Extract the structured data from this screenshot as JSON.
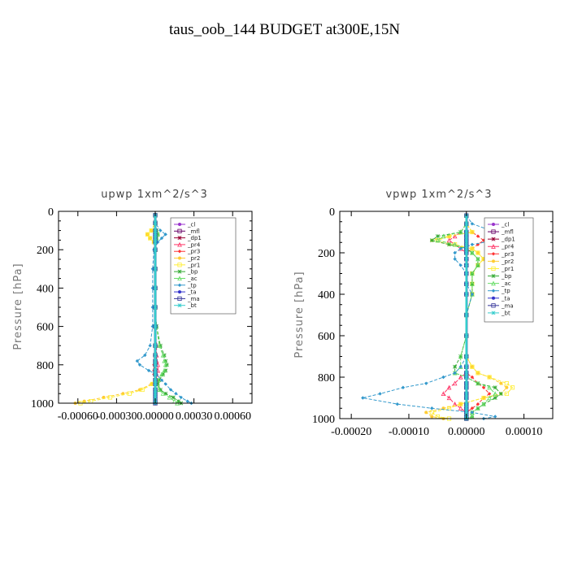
{
  "figure_title": "taus_oob_144  BUDGET at300E,15N",
  "chart_data": [
    {
      "type": "line",
      "title": "upwp   1xm^2/s^3",
      "ylabel": "Pressure  [hPa]",
      "xlabel": "",
      "xlim": [
        -0.00075,
        0.00075
      ],
      "ylim": [
        1000,
        0
      ],
      "x_ticks": [
        -0.0006,
        -0.0003,
        0.0,
        0.0003,
        0.0006
      ],
      "x_tick_labels": [
        "-0.00060",
        "-0.00030",
        "0.00000",
        "0.00030",
        "0.00060"
      ],
      "y_ticks": [
        0,
        200,
        400,
        600,
        800,
        1000
      ],
      "legend": "top-right",
      "pressure": [
        20,
        60,
        100,
        120,
        140,
        160,
        200,
        300,
        400,
        500,
        600,
        700,
        750,
        780,
        800,
        830,
        850,
        880,
        900,
        930,
        950,
        970,
        990,
        1000
      ],
      "series": [
        {
          "name": "_cl",
          "color": "#9933cc",
          "values": [
            0,
            0,
            0,
            0,
            0,
            0,
            0,
            0,
            0,
            0,
            0,
            0,
            0,
            0,
            0,
            0,
            0,
            0,
            0,
            0,
            0,
            0,
            0,
            0
          ]
        },
        {
          "name": "_mfl",
          "color": "#660066",
          "values": [
            0,
            0,
            0,
            0,
            0,
            0,
            0,
            0,
            0,
            0,
            0,
            0,
            0,
            0,
            0,
            0,
            0,
            0,
            0,
            0,
            0,
            0,
            0,
            0
          ]
        },
        {
          "name": "_dp1",
          "color": "#990033",
          "values": [
            0,
            0,
            0,
            0,
            0,
            0,
            0,
            0,
            0,
            0,
            0,
            0,
            0,
            0,
            0,
            0,
            0,
            0,
            0,
            0,
            0,
            0,
            0,
            0
          ]
        },
        {
          "name": "_pr4",
          "color": "#ff3366",
          "values": [
            0,
            0,
            0,
            0,
            0,
            0,
            0,
            0,
            0,
            0,
            0,
            1e-05,
            1e-05,
            1e-05,
            2e-05,
            2e-05,
            1e-05,
            1e-05,
            1e-05,
            0,
            0,
            0,
            0,
            0
          ]
        },
        {
          "name": "_pr3",
          "color": "#ff3333",
          "values": [
            0,
            0,
            0,
            0,
            0,
            0,
            0,
            0,
            0,
            0,
            0,
            0,
            0,
            0,
            -1e-05,
            -1e-05,
            -1e-05,
            0,
            0,
            0,
            0,
            0,
            0,
            0
          ]
        },
        {
          "name": "_pr2",
          "color": "#ffcc33",
          "values": [
            0,
            0,
            -3e-05,
            -6e-05,
            -4e-05,
            -1e-05,
            0,
            0,
            0,
            0,
            0,
            0,
            0,
            0,
            0,
            0,
            0,
            0,
            -3e-05,
            -0.00012,
            -0.00025,
            -0.0004,
            -0.00055,
            -0.00062
          ]
        },
        {
          "name": "_pr1",
          "color": "#ffee33",
          "values": [
            0,
            0,
            -3e-05,
            -6e-05,
            -4e-05,
            -1e-05,
            0,
            0,
            0,
            0,
            0,
            0,
            0,
            0,
            0,
            0,
            0,
            0,
            -2e-05,
            -0.0001,
            -0.0002,
            -0.00035,
            -0.0005,
            -0.00058
          ]
        },
        {
          "name": "_bp",
          "color": "#33aa33",
          "values": [
            0,
            0,
            1e-05,
            2e-05,
            1e-05,
            0,
            0,
            0,
            0,
            0,
            1e-05,
            4e-05,
            7e-05,
            8e-05,
            9e-05,
            8e-05,
            6e-05,
            3e-05,
            2e-05,
            4e-05,
            8e-05,
            0.00014,
            0.00018,
            0.0002
          ]
        },
        {
          "name": "_ac",
          "color": "#66dd66",
          "values": [
            0,
            0,
            1e-05,
            2e-05,
            1e-05,
            0,
            0,
            0,
            0,
            0,
            1e-05,
            3e-05,
            6e-05,
            7e-05,
            8e-05,
            7e-05,
            5e-05,
            2e-05,
            1e-05,
            3e-05,
            6e-05,
            0.00011,
            0.00015,
            0.00017
          ]
        },
        {
          "name": "_tp",
          "color": "#3399cc",
          "values": [
            0,
            0,
            4e-05,
            8e-05,
            5e-05,
            2e-05,
            -1e-05,
            -2e-05,
            -2e-05,
            -2e-05,
            -2e-05,
            -4e-05,
            -8e-05,
            -0.00014,
            -0.00012,
            -5e-05,
            1e-05,
            5e-05,
            8e-05,
            0.00012,
            0.00016,
            0.0002,
            0.00025,
            0.00028
          ]
        },
        {
          "name": "_ta",
          "color": "#3333cc",
          "values": [
            0,
            0,
            0,
            0,
            0,
            0,
            0,
            0,
            0,
            0,
            0,
            0,
            0,
            0,
            0,
            0,
            0,
            0,
            0,
            0,
            0,
            0,
            0,
            0
          ]
        },
        {
          "name": "_ma",
          "color": "#333399",
          "values": [
            0,
            0,
            0,
            0,
            0,
            0,
            0,
            0,
            0,
            0,
            0,
            0,
            0,
            0,
            0,
            0,
            0,
            0,
            0,
            0,
            0,
            0,
            0,
            0
          ]
        },
        {
          "name": "_bt",
          "color": "#33cccc",
          "values": [
            0,
            0,
            0,
            0,
            0,
            0,
            0,
            0,
            0,
            0,
            0,
            0,
            0,
            0,
            0,
            0,
            0,
            0,
            0,
            0,
            0,
            0,
            0,
            0
          ]
        }
      ]
    },
    {
      "type": "line",
      "title": "vpwp   1xm^2/s^3",
      "ylabel": "Pressure  [hPa]",
      "xlabel": "",
      "xlim": [
        -0.00022,
        0.00015
      ],
      "ylim": [
        1000,
        0
      ],
      "x_ticks": [
        -0.0002,
        -0.0001,
        0.0,
        0.0001
      ],
      "x_tick_labels": [
        "-0.00020",
        "-0.00010",
        "0.00000",
        "0.00010"
      ],
      "y_ticks": [
        0,
        200,
        400,
        600,
        800,
        1000
      ],
      "legend": "top-right",
      "pressure": [
        20,
        60,
        100,
        120,
        140,
        160,
        180,
        200,
        230,
        260,
        300,
        350,
        400,
        500,
        600,
        700,
        750,
        780,
        800,
        830,
        850,
        880,
        900,
        930,
        950,
        970,
        990,
        1000
      ],
      "series": [
        {
          "name": "_cl",
          "color": "#9933cc",
          "values": [
            0,
            0,
            0,
            0,
            0,
            0,
            0,
            0,
            0,
            0,
            0,
            0,
            0,
            0,
            0,
            0,
            0,
            0,
            0,
            0,
            0,
            0,
            0,
            0,
            0,
            0,
            0,
            0
          ]
        },
        {
          "name": "_mfl",
          "color": "#660066",
          "values": [
            0,
            0,
            0,
            0,
            0,
            0,
            0,
            0,
            0,
            0,
            0,
            0,
            0,
            0,
            0,
            0,
            0,
            0,
            0,
            0,
            0,
            0,
            0,
            0,
            0,
            0,
            0,
            0
          ]
        },
        {
          "name": "_dp1",
          "color": "#990033",
          "values": [
            0,
            0,
            0,
            0,
            0,
            0,
            0,
            0,
            0,
            0,
            0,
            0,
            0,
            0,
            0,
            0,
            0,
            0,
            0,
            0,
            0,
            0,
            0,
            0,
            0,
            0,
            0,
            0
          ]
        },
        {
          "name": "_pr4",
          "color": "#ff3366",
          "values": [
            0,
            0,
            -1e-05,
            -2e-05,
            -3e-05,
            -2e-05,
            -1e-05,
            0,
            0,
            0,
            0,
            0,
            0,
            0,
            0,
            0,
            0,
            0,
            -1e-05,
            -2e-05,
            -3e-05,
            -4e-05,
            -3e-05,
            -2e-05,
            -1e-05,
            0,
            0,
            0
          ]
        },
        {
          "name": "_pr3",
          "color": "#ff3333",
          "values": [
            0,
            0,
            1e-05,
            2e-05,
            3e-05,
            2e-05,
            1e-05,
            0,
            0,
            0,
            0,
            0,
            0,
            0,
            0,
            0,
            0,
            0,
            1e-05,
            2e-05,
            3e-05,
            4e-05,
            3e-05,
            2e-05,
            1e-05,
            0,
            0,
            0
          ]
        },
        {
          "name": "_pr2",
          "color": "#ffcc33",
          "values": [
            0,
            0,
            1e-05,
            -3e-05,
            -6e-05,
            -3e-05,
            1e-05,
            2e-05,
            3e-05,
            2e-05,
            1e-05,
            1e-05,
            1e-05,
            0,
            0,
            0,
            1e-05,
            2e-05,
            4e-05,
            6e-05,
            7e-05,
            6e-05,
            3e-05,
            -1e-05,
            -4e-05,
            -7e-05,
            -6e-05,
            -4e-05
          ]
        },
        {
          "name": "_pr1",
          "color": "#ffee33",
          "values": [
            0,
            0,
            1e-05,
            -3e-05,
            -5e-05,
            -2e-05,
            1e-05,
            2e-05,
            3e-05,
            2e-05,
            1e-05,
            1e-05,
            1e-05,
            0,
            0,
            0,
            1e-05,
            2e-05,
            4e-05,
            7e-05,
            8e-05,
            7e-05,
            3e-05,
            -1e-05,
            -3e-05,
            -6e-05,
            -5e-05,
            -3e-05
          ]
        },
        {
          "name": "_bp",
          "color": "#33aa33",
          "values": [
            0,
            0,
            -1e-05,
            -5e-05,
            -6e-05,
            -3e-05,
            0,
            1e-05,
            2e-05,
            2e-05,
            1e-05,
            1e-05,
            1e-05,
            0,
            0,
            -1e-05,
            -2e-05,
            -2e-05,
            0,
            2e-05,
            5e-05,
            6e-05,
            5e-05,
            3e-05,
            2e-05,
            1e-05,
            1e-05,
            0
          ]
        },
        {
          "name": "_ac",
          "color": "#66dd66",
          "values": [
            0,
            0,
            -1e-05,
            -4e-05,
            -5e-05,
            -2e-05,
            0,
            1e-05,
            2e-05,
            2e-05,
            1e-05,
            1e-05,
            1e-05,
            0,
            0,
            -1e-05,
            -1e-05,
            -2e-05,
            0,
            2e-05,
            4e-05,
            5e-05,
            4e-05,
            3e-05,
            2e-05,
            1e-05,
            1e-05,
            0
          ]
        },
        {
          "name": "_tp",
          "color": "#3399cc",
          "values": [
            0,
            1e-05,
            5e-05,
            9e-05,
            5e-05,
            1e-05,
            -1e-05,
            -2e-05,
            -2e-05,
            -1e-05,
            0,
            0,
            1e-05,
            0,
            0,
            0,
            -1e-05,
            -2e-05,
            -4e-05,
            -7e-05,
            -0.00011,
            -0.00015,
            -0.00018,
            -0.00012,
            -6e-05,
            1e-05,
            5e-05,
            3e-05
          ]
        },
        {
          "name": "_ta",
          "color": "#3333cc",
          "values": [
            0,
            0,
            0,
            0,
            0,
            0,
            0,
            0,
            0,
            0,
            0,
            0,
            0,
            0,
            0,
            0,
            0,
            0,
            0,
            0,
            0,
            0,
            0,
            0,
            0,
            0,
            0,
            0
          ]
        },
        {
          "name": "_ma",
          "color": "#333399",
          "values": [
            0,
            0,
            0,
            0,
            0,
            0,
            0,
            0,
            0,
            0,
            0,
            0,
            0,
            0,
            0,
            0,
            0,
            0,
            0,
            0,
            0,
            0,
            0,
            0,
            0,
            0,
            0,
            0
          ]
        },
        {
          "name": "_bt",
          "color": "#33cccc",
          "values": [
            0,
            0,
            0,
            0,
            0,
            0,
            0,
            0,
            0,
            0,
            0,
            0,
            0,
            0,
            0,
            0,
            0,
            0,
            0,
            0,
            0,
            0,
            0,
            0,
            0,
            0,
            0,
            0
          ]
        }
      ]
    }
  ]
}
